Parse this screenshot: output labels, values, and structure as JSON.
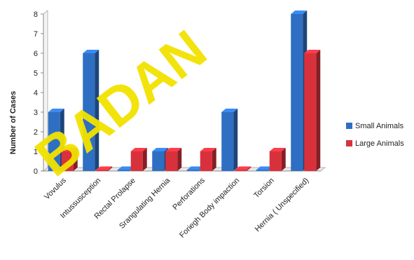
{
  "watermark": "BADAN",
  "chart_data": {
    "type": "bar",
    "categories": [
      "Vovulus",
      "Intussusception",
      "Rectal Prolapse",
      "Srangulating Hernia",
      "Perforations",
      "Foriegh Body impaction",
      "Torsion",
      "Hernia ( Unspecified)"
    ],
    "series": [
      {
        "name": "Small Animals",
        "color": "#2e6fc4",
        "values": [
          3,
          6,
          0,
          1,
          0,
          3,
          0,
          8
        ]
      },
      {
        "name": "Large Animals",
        "color": "#d9313b",
        "values": [
          1,
          0,
          1,
          1,
          1,
          0,
          1,
          6
        ]
      }
    ],
    "ylabel": "Number of Cases",
    "xlabel": "",
    "ylim": [
      0,
      8
    ],
    "yticks": [
      "0",
      "1",
      "2",
      "3",
      "4",
      "5",
      "6",
      "7",
      "8"
    ],
    "legend_position": "right",
    "grid": false
  }
}
